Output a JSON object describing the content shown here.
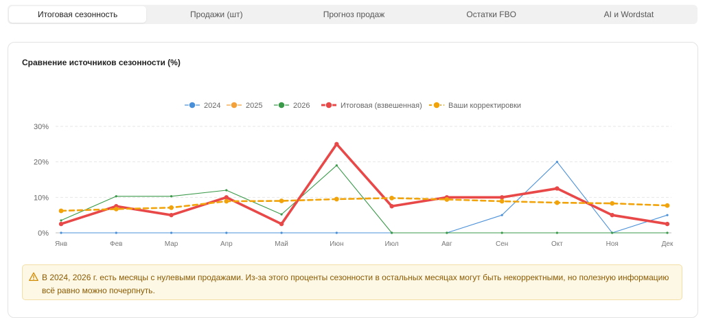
{
  "tabs": [
    {
      "label": "Итоговая сезонность",
      "active": true
    },
    {
      "label": "Продажи (шт)",
      "active": false
    },
    {
      "label": "Прогноз продаж",
      "active": false
    },
    {
      "label": "Остатки FBO",
      "active": false
    },
    {
      "label": "AI и Wordstat",
      "active": false
    }
  ],
  "card": {
    "title": "Сравнение источников сезонности (%)"
  },
  "alert": {
    "icon": "warning-icon",
    "text": "В 2024, 2026 г. есть месяцы с нулевыми продажами. Из-за этого проценты сезонности в остальных месяцах могут быть некорректными, но полезную информацию всё равно можно почерпнуть."
  },
  "chart_data": {
    "type": "line",
    "title": "Сравнение источников сезонности (%)",
    "categories": [
      "Янв",
      "Фев",
      "Мар",
      "Апр",
      "Май",
      "Июн",
      "Июл",
      "Авг",
      "Сен",
      "Окт",
      "Ноя",
      "Дек"
    ],
    "ylim": [
      0,
      30
    ],
    "yticks": [
      "0%",
      "10%",
      "20%",
      "30%"
    ],
    "grid": true,
    "legend_position": "top",
    "series": [
      {
        "name": "2024",
        "color": "#4a90d9",
        "style": "thin",
        "values": [
          0,
          0,
          0,
          0,
          0,
          0,
          0,
          0,
          5,
          20,
          0,
          5
        ]
      },
      {
        "name": "2025",
        "color": "#f4a13a",
        "style": "thin",
        "values": [
          null,
          null,
          null,
          null,
          null,
          null,
          null,
          null,
          null,
          null,
          null,
          null
        ]
      },
      {
        "name": "2026",
        "color": "#3a9a4a",
        "style": "thin",
        "values": [
          3.5,
          10.3,
          10.3,
          12,
          5.2,
          19,
          0,
          0,
          0,
          0,
          0,
          0
        ]
      },
      {
        "name": "Итоговая (взвешенная)",
        "color": "#e84848",
        "style": "bold",
        "values": [
          2.5,
          7.5,
          5,
          10,
          2.5,
          25,
          7.5,
          10,
          10,
          12.5,
          5,
          2.5
        ]
      },
      {
        "name": "Ваши корректировки",
        "color": "#f0a30a",
        "style": "dashed",
        "values": [
          6.2,
          6.7,
          7.1,
          8.9,
          9.0,
          9.5,
          9.8,
          9.4,
          8.9,
          8.5,
          8.3,
          7.7
        ]
      }
    ]
  }
}
